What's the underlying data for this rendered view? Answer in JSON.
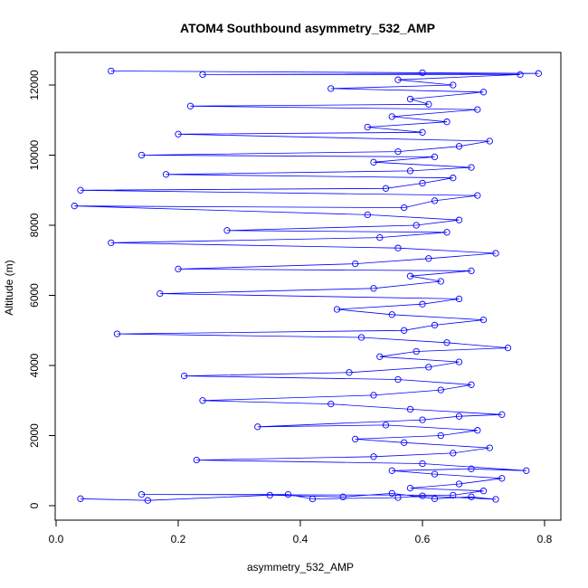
{
  "chart_data": {
    "type": "scatter",
    "title": "ATOM4 Southbound asymmetry_532_AMP",
    "xlabel": "asymmetry_532_AMP",
    "ylabel": "Altitude (m)",
    "xlim": [
      0.0,
      0.8
    ],
    "ylim": [
      0,
      12400
    ],
    "x_ticks": [
      0.0,
      0.2,
      0.4,
      0.6,
      0.8
    ],
    "x_tick_labels": [
      "0.0",
      "0.2",
      "0.4",
      "0.6",
      "0.8"
    ],
    "y_ticks": [
      0,
      2000,
      4000,
      6000,
      8000,
      10000,
      12000
    ],
    "y_tick_labels": [
      "0",
      "2000",
      "4000",
      "6000",
      "8000",
      "10000",
      "12000"
    ],
    "grid": false,
    "legend": "none",
    "marker": "open-circle",
    "connected": true,
    "series": [
      {
        "color": "#0000ff",
        "points": [
          [
            0.04,
            200
          ],
          [
            0.15,
            150
          ],
          [
            0.35,
            300
          ],
          [
            0.47,
            250
          ],
          [
            0.55,
            350
          ],
          [
            0.62,
            200
          ],
          [
            0.68,
            250
          ],
          [
            0.72,
            180
          ],
          [
            0.6,
            280
          ],
          [
            0.56,
            230
          ],
          [
            0.42,
            190
          ],
          [
            0.38,
            320
          ],
          [
            0.14,
            320
          ],
          [
            0.65,
            300
          ],
          [
            0.7,
            420
          ],
          [
            0.58,
            500
          ],
          [
            0.66,
            620
          ],
          [
            0.73,
            780
          ],
          [
            0.62,
            900
          ],
          [
            0.55,
            1000
          ],
          [
            0.68,
            1050
          ],
          [
            0.77,
            1000
          ],
          [
            0.6,
            1200
          ],
          [
            0.23,
            1300
          ],
          [
            0.52,
            1400
          ],
          [
            0.65,
            1500
          ],
          [
            0.71,
            1650
          ],
          [
            0.57,
            1800
          ],
          [
            0.49,
            1900
          ],
          [
            0.63,
            2000
          ],
          [
            0.69,
            2150
          ],
          [
            0.54,
            2300
          ],
          [
            0.33,
            2250
          ],
          [
            0.6,
            2450
          ],
          [
            0.66,
            2550
          ],
          [
            0.73,
            2600
          ],
          [
            0.58,
            2750
          ],
          [
            0.45,
            2900
          ],
          [
            0.24,
            3000
          ],
          [
            0.52,
            3150
          ],
          [
            0.63,
            3300
          ],
          [
            0.68,
            3450
          ],
          [
            0.56,
            3600
          ],
          [
            0.21,
            3700
          ],
          [
            0.48,
            3800
          ],
          [
            0.61,
            3950
          ],
          [
            0.66,
            4100
          ],
          [
            0.53,
            4250
          ],
          [
            0.59,
            4400
          ],
          [
            0.74,
            4500
          ],
          [
            0.64,
            4650
          ],
          [
            0.5,
            4800
          ],
          [
            0.1,
            4900
          ],
          [
            0.57,
            5000
          ],
          [
            0.62,
            5150
          ],
          [
            0.7,
            5300
          ],
          [
            0.55,
            5450
          ],
          [
            0.46,
            5600
          ],
          [
            0.6,
            5750
          ],
          [
            0.66,
            5900
          ],
          [
            0.17,
            6050
          ],
          [
            0.52,
            6200
          ],
          [
            0.63,
            6400
          ],
          [
            0.58,
            6550
          ],
          [
            0.68,
            6700
          ],
          [
            0.2,
            6750
          ],
          [
            0.49,
            6900
          ],
          [
            0.61,
            7050
          ],
          [
            0.72,
            7200
          ],
          [
            0.56,
            7350
          ],
          [
            0.09,
            7500
          ],
          [
            0.53,
            7650
          ],
          [
            0.64,
            7800
          ],
          [
            0.28,
            7850
          ],
          [
            0.59,
            8000
          ],
          [
            0.66,
            8150
          ],
          [
            0.51,
            8300
          ],
          [
            0.03,
            8550
          ],
          [
            0.57,
            8500
          ],
          [
            0.62,
            8700
          ],
          [
            0.69,
            8850
          ],
          [
            0.04,
            9000
          ],
          [
            0.54,
            9050
          ],
          [
            0.6,
            9200
          ],
          [
            0.65,
            9350
          ],
          [
            0.18,
            9450
          ],
          [
            0.58,
            9550
          ],
          [
            0.68,
            9650
          ],
          [
            0.52,
            9800
          ],
          [
            0.62,
            9950
          ],
          [
            0.14,
            10000
          ],
          [
            0.56,
            10100
          ],
          [
            0.66,
            10250
          ],
          [
            0.71,
            10400
          ],
          [
            0.2,
            10600
          ],
          [
            0.6,
            10650
          ],
          [
            0.51,
            10800
          ],
          [
            0.64,
            10950
          ],
          [
            0.55,
            11100
          ],
          [
            0.69,
            11300
          ],
          [
            0.22,
            11400
          ],
          [
            0.61,
            11450
          ],
          [
            0.58,
            11600
          ],
          [
            0.7,
            11800
          ],
          [
            0.45,
            11900
          ],
          [
            0.65,
            12000
          ],
          [
            0.56,
            12150
          ],
          [
            0.76,
            12300
          ],
          [
            0.24,
            12300
          ],
          [
            0.79,
            12330
          ],
          [
            0.09,
            12400
          ],
          [
            0.6,
            12350
          ]
        ]
      }
    ]
  }
}
